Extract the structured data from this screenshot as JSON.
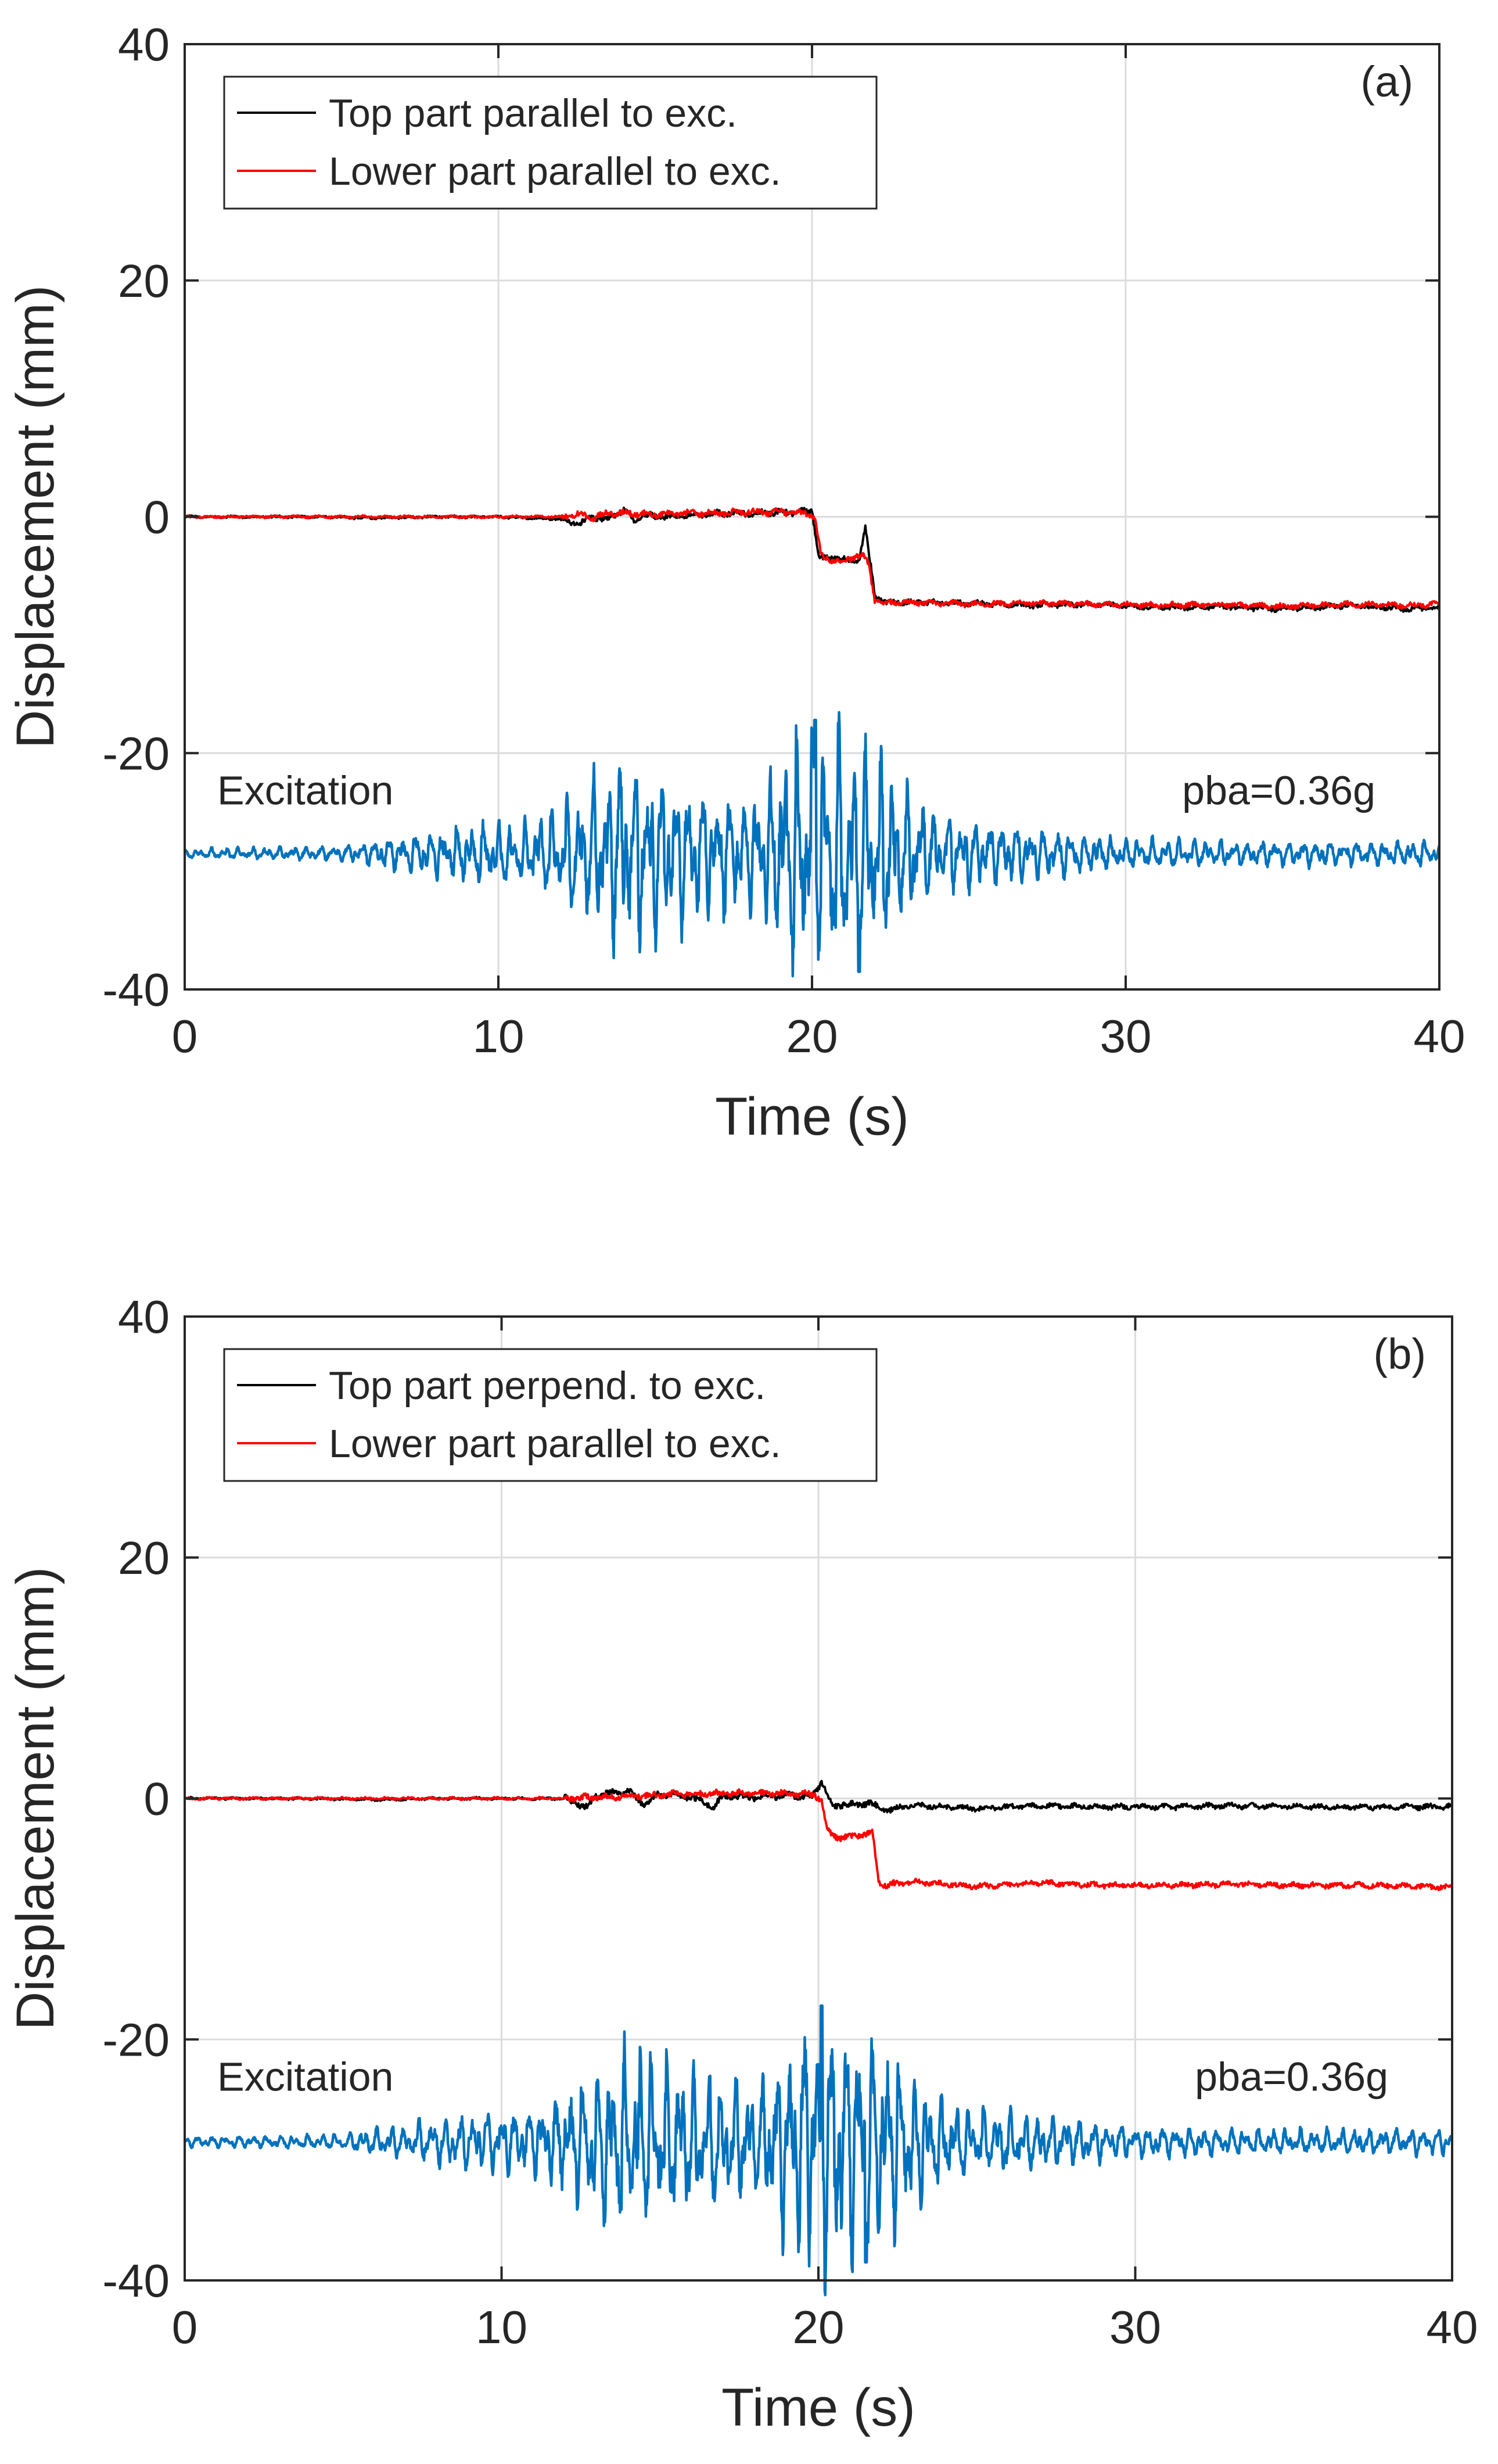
{
  "colors": {
    "top_series": "#000000",
    "lower_series": "#ff0000",
    "excitation": "#0072bd",
    "grid": "#dcdcdc",
    "axis": "#262626"
  },
  "chart_data": [
    {
      "type": "line",
      "panel_label": "(a)",
      "xlabel": "Time (s)",
      "ylabel": "Displacement (mm)",
      "xlim": [
        0,
        40
      ],
      "ylim": [
        -40,
        40
      ],
      "xticks": [
        0,
        10,
        20,
        30,
        40
      ],
      "yticks": [
        -40,
        -20,
        0,
        20,
        40
      ],
      "xtick_labels": [
        "0",
        "10",
        "20",
        "30",
        "40"
      ],
      "ytick_labels": [
        "-40",
        "-20",
        "0",
        "20",
        "40"
      ],
      "grid": true,
      "legend_position": "top-left",
      "annotations": {
        "excitation_label": "Excitation",
        "pba_label": "pba=0.36g"
      },
      "series": [
        {
          "name": "Top part parallel to exc.",
          "role": "top",
          "x": [
            0,
            2,
            4,
            6,
            8,
            10,
            12,
            12.6,
            13,
            13.4,
            14,
            14.3,
            14.6,
            15,
            16,
            17,
            18,
            19,
            19.8,
            20.0,
            20.2,
            20.4,
            20.8,
            21.2,
            21.5,
            21.7,
            22.0,
            22.4,
            23,
            25,
            27,
            29,
            31,
            33,
            35,
            37,
            39,
            40
          ],
          "y": [
            0,
            0,
            0,
            -0.1,
            0,
            0,
            -0.2,
            -0.6,
            0.1,
            -0.3,
            0.6,
            -0.4,
            0.2,
            0,
            0.1,
            0.3,
            0.3,
            0.4,
            0.4,
            0.6,
            -3.2,
            -3.6,
            -3.4,
            -3.8,
            -3.6,
            -1.0,
            -6.6,
            -7.3,
            -7.2,
            -7.3,
            -7.5,
            -7.4,
            -7.7,
            -7.6,
            -7.8,
            -7.5,
            -7.8,
            -7.7
          ]
        },
        {
          "name": "Lower part parallel to exc.",
          "role": "lower",
          "x": [
            0,
            2,
            4,
            6,
            8,
            10,
            12,
            12.6,
            13,
            13.5,
            14,
            15,
            16,
            17,
            18,
            19,
            19.9,
            20.1,
            20.3,
            20.6,
            21.0,
            21.4,
            21.6,
            21.8,
            22.0,
            22.3,
            23,
            25,
            27,
            29,
            31,
            33,
            35,
            37,
            39,
            40
          ],
          "y": [
            0,
            0,
            0,
            0,
            0,
            0,
            0,
            0.2,
            -0.1,
            0.3,
            0.3,
            0.2,
            0.3,
            0.3,
            0.4,
            0.4,
            0.3,
            -0.2,
            -3.4,
            -3.6,
            -3.9,
            -3.3,
            -3.2,
            -4.0,
            -7.0,
            -7.3,
            -7.2,
            -7.4,
            -7.3,
            -7.4,
            -7.5,
            -7.4,
            -7.6,
            -7.4,
            -7.5,
            -7.4
          ]
        },
        {
          "name": "Excitation",
          "role": "excitation",
          "baseline": -28.5,
          "amplitude_envelope": {
            "x": [
              0,
              5,
              7,
              9,
              11,
              12,
              14,
              16,
              18,
              20,
              22,
              24,
              26,
              28,
              30,
              35,
              40
            ],
            "amp": [
              0.4,
              0.6,
              1.5,
              2.3,
              2.6,
              4.0,
              8.0,
              5.5,
              4.5,
              11.0,
              8.0,
              3.2,
              2.5,
              1.8,
              1.2,
              1.0,
              1.0
            ]
          },
          "peaks": {
            "max_y": -17.2,
            "max_x": 20.1,
            "min_y": -38.5,
            "min_x": 21.5
          }
        }
      ]
    },
    {
      "type": "line",
      "panel_label": "(b)",
      "xlabel": "Time (s)",
      "ylabel": "Displacement (mm)",
      "xlim": [
        0,
        40
      ],
      "ylim": [
        -40,
        40
      ],
      "xticks": [
        0,
        10,
        20,
        30,
        40
      ],
      "yticks": [
        -40,
        -20,
        0,
        20,
        40
      ],
      "xtick_labels": [
        "0",
        "10",
        "20",
        "30",
        "40"
      ],
      "ytick_labels": [
        "-40",
        "-20",
        "0",
        "20",
        "40"
      ],
      "grid": true,
      "legend_position": "top-left",
      "annotations": {
        "excitation_label": "Excitation",
        "pba_label": "pba=0.36g"
      },
      "series": [
        {
          "name": "Top part perpend. to exc.",
          "role": "top",
          "x": [
            0,
            2,
            4,
            6,
            8,
            10,
            12,
            12.7,
            13,
            14,
            14.5,
            15,
            16,
            16.7,
            17,
            18,
            19,
            19.8,
            20.1,
            20.3,
            20.5,
            20.8,
            21.2,
            21.6,
            22,
            23,
            25,
            27,
            29,
            31,
            33,
            35,
            37,
            39,
            40
          ],
          "y": [
            0,
            0,
            0,
            -0.1,
            0,
            0,
            0,
            -0.8,
            0.3,
            0.6,
            -0.5,
            0.4,
            0.1,
            -0.7,
            0.2,
            0.1,
            0.3,
            0.1,
            1.4,
            0.2,
            -0.8,
            -0.4,
            -0.6,
            -0.3,
            -1.0,
            -0.6,
            -0.8,
            -0.6,
            -0.7,
            -0.7,
            -0.6,
            -0.7,
            -0.7,
            -0.7,
            -0.7
          ]
        },
        {
          "name": "Lower part parallel to exc.",
          "role": "lower",
          "x": [
            0,
            2,
            4,
            6,
            8,
            10,
            12,
            13,
            14,
            15,
            16,
            17,
            18,
            19,
            19.9,
            20.1,
            20.3,
            20.6,
            21.0,
            21.4,
            21.7,
            21.9,
            22.2,
            23,
            25,
            27,
            29,
            31,
            33,
            35,
            37,
            39,
            40
          ],
          "y": [
            0,
            0,
            0,
            0,
            0,
            0,
            0,
            0.1,
            0.2,
            0.3,
            0.4,
            0.4,
            0.4,
            0.4,
            0.3,
            -0.2,
            -2.8,
            -3.2,
            -3.2,
            -3.0,
            -2.8,
            -7.0,
            -7.2,
            -6.9,
            -7.3,
            -7.0,
            -7.2,
            -7.2,
            -7.1,
            -7.2,
            -7.2,
            -7.3,
            -7.4
          ]
        },
        {
          "name": "Excitation",
          "role": "excitation",
          "baseline": -28.5,
          "amplitude_envelope": {
            "x": [
              0,
              5,
              7,
              9,
              11,
              12,
              14,
              16,
              18,
              20,
              22,
              24,
              26,
              28,
              30,
              35,
              40
            ],
            "amp": [
              0.4,
              0.6,
              1.5,
              2.3,
              2.6,
              4.0,
              8.0,
              5.5,
              4.5,
              11.0,
              8.0,
              3.2,
              2.5,
              1.8,
              1.2,
              1.0,
              1.0
            ]
          },
          "peaks": {
            "max_y": -17.2,
            "max_x": 20.1,
            "min_y": -38.5,
            "min_x": 21.5
          }
        }
      ]
    }
  ]
}
